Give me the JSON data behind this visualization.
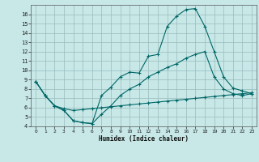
{
  "xlabel": "Humidex (Indice chaleur)",
  "background_color": "#c8e8e8",
  "grid_color": "#99bbbb",
  "line_color": "#006666",
  "xlim": [
    -0.5,
    23.5
  ],
  "ylim": [
    4,
    17
  ],
  "xticks": [
    0,
    1,
    2,
    3,
    4,
    5,
    6,
    7,
    8,
    9,
    10,
    11,
    12,
    13,
    14,
    15,
    16,
    17,
    18,
    19,
    20,
    21,
    22,
    23
  ],
  "yticks": [
    4,
    5,
    6,
    7,
    8,
    9,
    10,
    11,
    12,
    13,
    14,
    15,
    16
  ],
  "line1_x": [
    0,
    1,
    2,
    3,
    4,
    5,
    6,
    7,
    8,
    9,
    10,
    11,
    12,
    13,
    14,
    15,
    16,
    17,
    18,
    19,
    20,
    21,
    22,
    23
  ],
  "line1_y": [
    8.8,
    7.3,
    6.2,
    5.7,
    4.6,
    4.4,
    4.3,
    7.3,
    8.2,
    9.3,
    9.8,
    9.7,
    11.5,
    11.7,
    14.7,
    15.8,
    16.5,
    16.6,
    14.7,
    12.0,
    9.3,
    8.1,
    7.8,
    7.5
  ],
  "line2_x": [
    0,
    1,
    2,
    3,
    4,
    5,
    6,
    7,
    8,
    9,
    10,
    11,
    12,
    13,
    14,
    15,
    16,
    17,
    18,
    19,
    20,
    21,
    22,
    23
  ],
  "line2_y": [
    8.8,
    7.3,
    6.2,
    5.7,
    4.6,
    4.4,
    4.3,
    5.3,
    6.2,
    7.3,
    8.0,
    8.5,
    9.3,
    9.8,
    10.3,
    10.7,
    11.3,
    11.7,
    12.0,
    9.3,
    8.0,
    7.5,
    7.3,
    7.5
  ],
  "line3_x": [
    0,
    1,
    2,
    3,
    4,
    5,
    6,
    7,
    8,
    9,
    10,
    11,
    12,
    13,
    14,
    15,
    16,
    17,
    18,
    19,
    20,
    21,
    22,
    23
  ],
  "line3_y": [
    8.8,
    7.3,
    6.2,
    5.9,
    5.7,
    5.8,
    5.9,
    6.0,
    6.1,
    6.2,
    6.3,
    6.4,
    6.5,
    6.6,
    6.7,
    6.8,
    6.9,
    7.0,
    7.1,
    7.2,
    7.3,
    7.4,
    7.5,
    7.6
  ]
}
